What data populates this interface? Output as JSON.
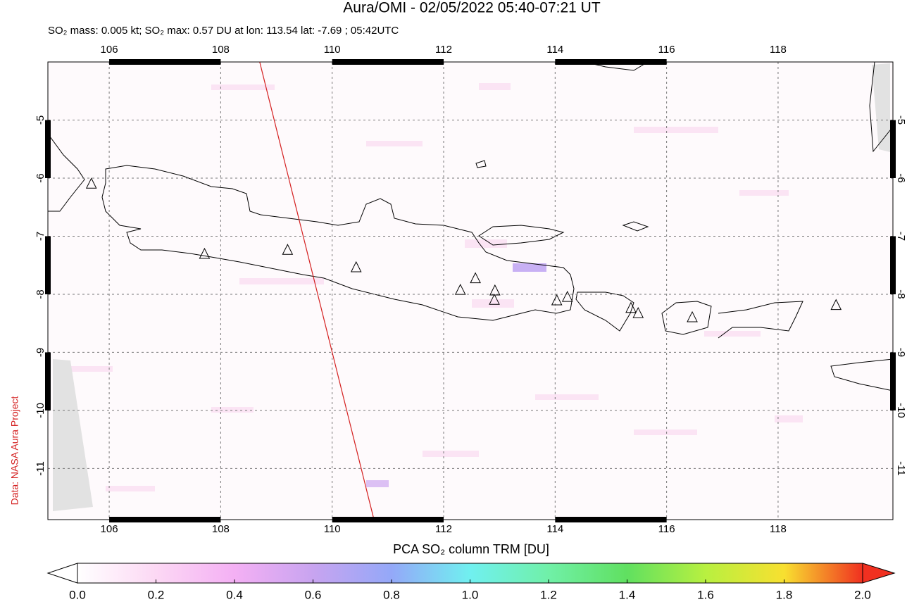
{
  "chart_data": {
    "type": "map",
    "title": "Aura/OMI - 02/05/2022 05:40-07:21 UT",
    "subtitle": "SO₂ mass: 0.005 kt; SO₂ max: 0.57 DU at lon: 113.54 lat: -7.69 ; 05:42UTC",
    "source": "Data: NASA Aura Project",
    "xlim": [
      104.9,
      120.06
    ],
    "ylim": [
      -11.88,
      -4.0
    ],
    "xticks": [
      106,
      108,
      110,
      112,
      114,
      116,
      118
    ],
    "yticks": [
      -5,
      -6,
      -7,
      -8,
      -9,
      -10,
      -11
    ],
    "grid": true,
    "volcanoes": {
      "lon": [
        105.68,
        107.71,
        109.2,
        110.43,
        112.3,
        112.57,
        112.92,
        112.91,
        114.03,
        114.22,
        115.36,
        115.49,
        116.46,
        119.04
      ],
      "lat": [
        -6.1,
        -7.31,
        -7.24,
        -7.54,
        -7.93,
        -7.73,
        -7.94,
        -8.1,
        -8.11,
        -8.05,
        -8.24,
        -8.33,
        -8.4,
        -8.19
      ]
    },
    "track": {
      "color": "#d42020",
      "lon": [
        108.7,
        110.75
      ],
      "lat": [
        -4.0,
        -11.88
      ]
    },
    "colorbar": {
      "label": "PCA SO₂ column TRM [DU]",
      "lim": [
        0,
        2
      ],
      "colors": [
        "#ffffff",
        "#fcd8f4",
        "#f4b0f4",
        "#c8a4f0",
        "#94a8f8",
        "#70f0f0",
        "#70f0a8",
        "#60e060",
        "#b8f040",
        "#f8e030",
        "#f03020"
      ],
      "ticks": [
        {
          "value": 0,
          "label": "0.0"
        },
        {
          "value": 0.2,
          "label": "0.2"
        },
        {
          "value": 0.4,
          "label": "0.4"
        },
        {
          "value": 0.6,
          "label": "0.6"
        },
        {
          "value": 0.8,
          "label": "0.8"
        },
        {
          "value": 1.0,
          "label": "1.0"
        },
        {
          "value": 1.2,
          "label": "1.2"
        },
        {
          "value": 1.4,
          "label": "1.4"
        },
        {
          "value": 1.6,
          "label": "1.6"
        },
        {
          "value": 1.8,
          "label": "1.8"
        },
        {
          "value": 2.0,
          "label": "2.0"
        }
      ]
    }
  }
}
